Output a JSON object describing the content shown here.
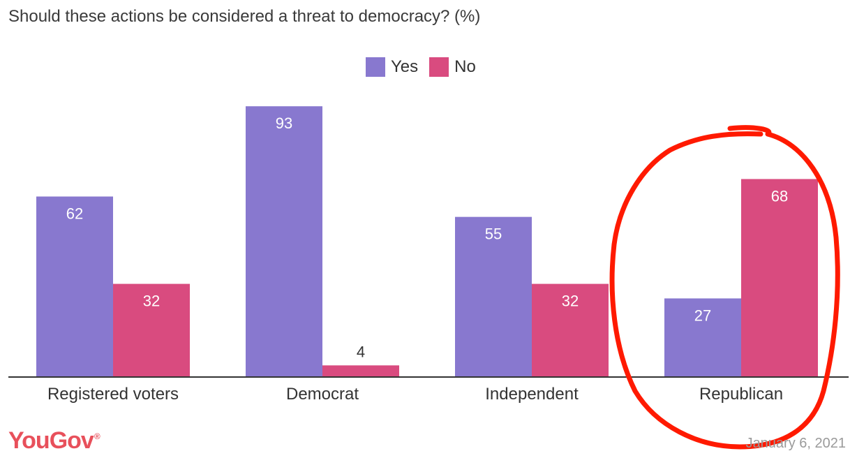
{
  "colors": {
    "yes": "#8878cf",
    "no": "#d94b7f",
    "axis": "#333333",
    "brand": "#e8505b",
    "annotation": "#ff1a00",
    "label_inside": "#ffffff",
    "label_outside": "#333333"
  },
  "brand": {
    "name": "YouGov",
    "mark": "®"
  },
  "date": "January 6, 2021",
  "chart_data": {
    "type": "bar",
    "title": "Should these actions be considered a threat to democracy? (%)",
    "categories": [
      "Registered voters",
      "Democrat",
      "Independent",
      "Republican"
    ],
    "series": [
      {
        "name": "Yes",
        "values": [
          62,
          93,
          55,
          27
        ]
      },
      {
        "name": "No",
        "values": [
          32,
          4,
          32,
          68
        ]
      }
    ],
    "ylim": [
      0,
      100
    ],
    "grid": false,
    "legend": "top-center",
    "annotation": {
      "shape": "hand-drawn circle",
      "target_category": "Republican"
    }
  }
}
